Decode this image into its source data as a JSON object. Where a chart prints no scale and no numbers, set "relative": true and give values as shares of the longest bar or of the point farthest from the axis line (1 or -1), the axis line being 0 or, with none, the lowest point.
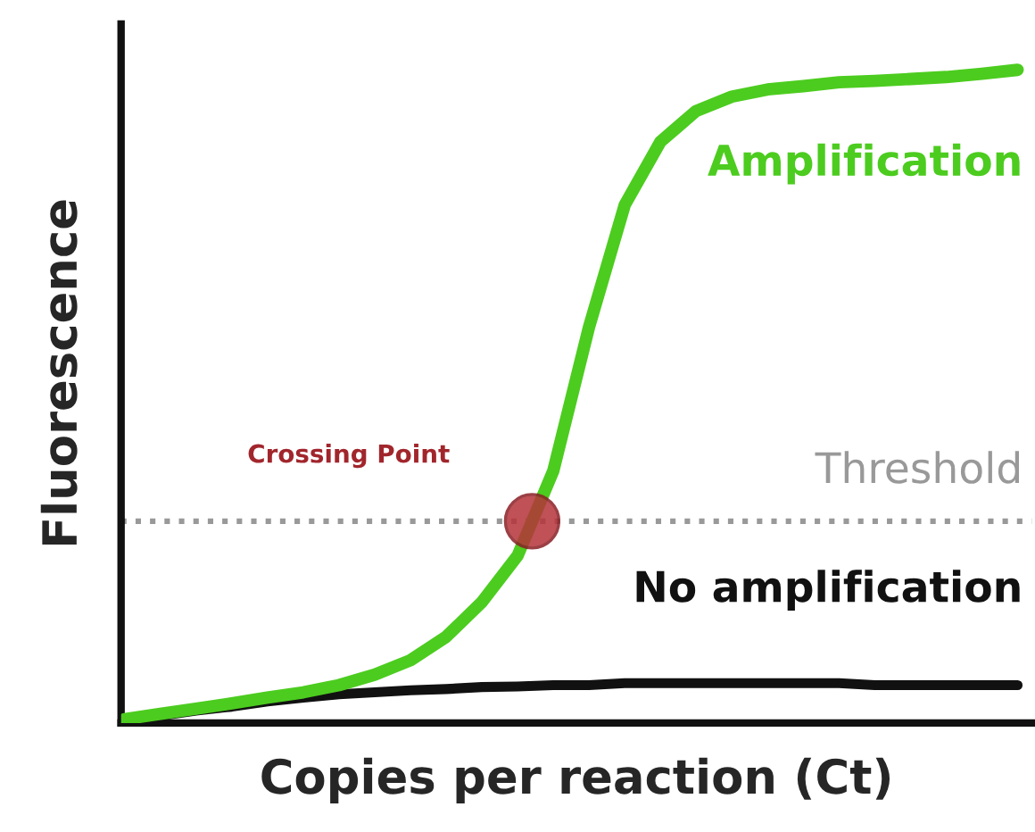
{
  "chart_data": {
    "type": "line",
    "relative": true,
    "xlabel": "Copies per reaction (Ct)",
    "ylabel": "Fluorescence",
    "categories": [
      null,
      null,
      null,
      null,
      null,
      null,
      null,
      null,
      null,
      null,
      null,
      null,
      null,
      null,
      null,
      null,
      null,
      null,
      null,
      null,
      null,
      null,
      null,
      null,
      null,
      null
    ],
    "series": [
      {
        "name": "Amplification",
        "color": "#4ccc1f",
        "values": [
          0.006,
          0.014,
          0.022,
          0.03,
          0.039,
          0.047,
          0.058,
          0.074,
          0.096,
          0.132,
          0.185,
          0.256,
          0.386,
          0.606,
          0.793,
          0.89,
          0.937,
          0.959,
          0.97,
          0.975,
          0.981,
          0.983,
          0.986,
          0.989,
          0.994,
          1
        ]
      },
      {
        "name": "No amplification",
        "color": "#111111",
        "values": [
          0.003,
          0.011,
          0.019,
          0.025,
          0.033,
          0.039,
          0.044,
          0.047,
          0.05,
          0.052,
          0.055,
          0.056,
          0.058,
          0.058,
          0.061,
          0.061,
          0.061,
          0.061,
          0.061,
          0.061,
          0.061,
          0.058,
          0.058,
          0.058,
          0.058,
          0.058
        ]
      }
    ],
    "ref_lines": [
      {
        "axis": "y",
        "value": 0.309,
        "label": "Threshold",
        "color": "#999999",
        "line_style": "dotted"
      }
    ],
    "annotations": [
      "Crossing Point"
    ],
    "marker": "none",
    "line_style": "solid"
  }
}
